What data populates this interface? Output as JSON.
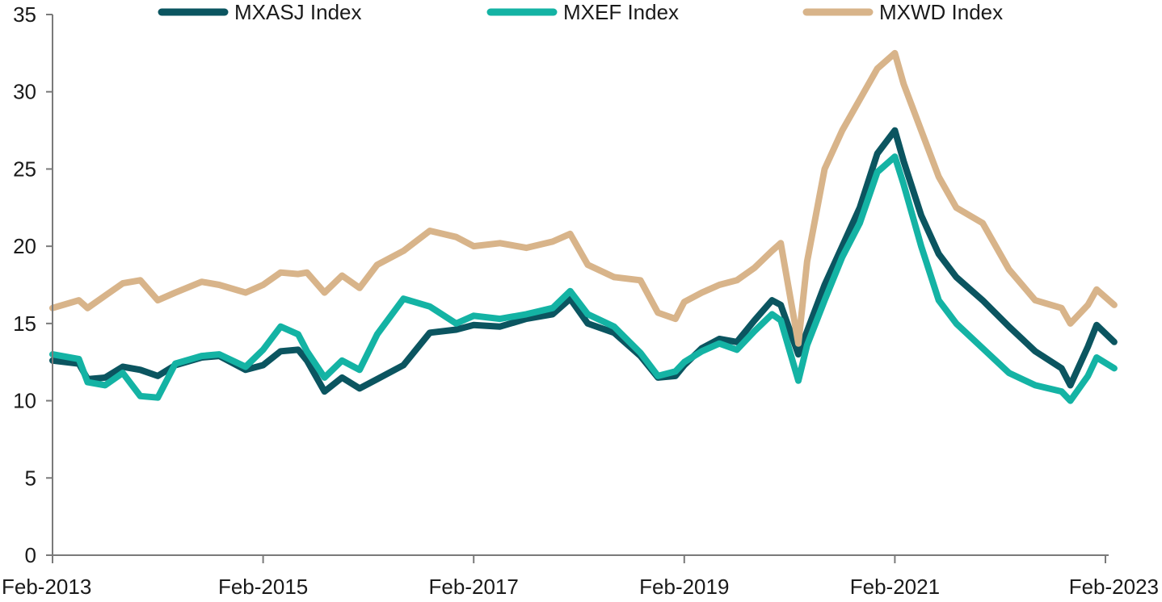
{
  "chart_data": {
    "type": "line",
    "title": "",
    "xlabel": "",
    "ylabel": "",
    "ylim": [
      0,
      35
    ],
    "xlim": [
      "2013-02",
      "2023-03"
    ],
    "yticks": [
      "0",
      "5",
      "10",
      "15",
      "20",
      "25",
      "30",
      "35"
    ],
    "xticks": [
      {
        "label": "Feb-2013",
        "date": "2013-02"
      },
      {
        "label": "Feb-2015",
        "date": "2015-02"
      },
      {
        "label": "Feb-2017",
        "date": "2017-02"
      },
      {
        "label": "Feb-2019",
        "date": "2019-02"
      },
      {
        "label": "Feb-2021",
        "date": "2021-02"
      },
      {
        "label": "Feb-2023",
        "date": "2023-02"
      }
    ],
    "grid": false,
    "legend": "top",
    "series": [
      {
        "name": "MXASJ Index",
        "color": "#0b5560",
        "points": [
          [
            "2013-02",
            12.6
          ],
          [
            "2013-05",
            12.4
          ],
          [
            "2013-06",
            11.4
          ],
          [
            "2013-08",
            11.5
          ],
          [
            "2013-10",
            12.2
          ],
          [
            "2013-12",
            12.0
          ],
          [
            "2014-02",
            11.6
          ],
          [
            "2014-04",
            12.3
          ],
          [
            "2014-07",
            12.8
          ],
          [
            "2014-09",
            12.9
          ],
          [
            "2014-12",
            12.0
          ],
          [
            "2015-02",
            12.3
          ],
          [
            "2015-04",
            13.2
          ],
          [
            "2015-06",
            13.3
          ],
          [
            "2015-07",
            12.6
          ],
          [
            "2015-09",
            10.6
          ],
          [
            "2015-11",
            11.5
          ],
          [
            "2016-01",
            10.8
          ],
          [
            "2016-03",
            11.4
          ],
          [
            "2016-06",
            12.3
          ],
          [
            "2016-09",
            14.4
          ],
          [
            "2016-12",
            14.6
          ],
          [
            "2017-02",
            14.9
          ],
          [
            "2017-05",
            14.8
          ],
          [
            "2017-08",
            15.3
          ],
          [
            "2017-11",
            15.6
          ],
          [
            "2018-01",
            16.6
          ],
          [
            "2018-03",
            15.0
          ],
          [
            "2018-06",
            14.4
          ],
          [
            "2018-09",
            12.9
          ],
          [
            "2018-11",
            11.5
          ],
          [
            "2019-01",
            11.6
          ],
          [
            "2019-02",
            12.3
          ],
          [
            "2019-04",
            13.4
          ],
          [
            "2019-06",
            14.0
          ],
          [
            "2019-08",
            13.8
          ],
          [
            "2019-10",
            15.2
          ],
          [
            "2019-12",
            16.5
          ],
          [
            "2020-01",
            16.2
          ],
          [
            "2020-03",
            13.0
          ],
          [
            "2020-04",
            14.5
          ],
          [
            "2020-06",
            17.5
          ],
          [
            "2020-08",
            20.0
          ],
          [
            "2020-10",
            22.5
          ],
          [
            "2020-12",
            26.0
          ],
          [
            "2021-02",
            27.5
          ],
          [
            "2021-03",
            25.5
          ],
          [
            "2021-05",
            22.0
          ],
          [
            "2021-07",
            19.5
          ],
          [
            "2021-09",
            18.0
          ],
          [
            "2021-12",
            16.5
          ],
          [
            "2022-03",
            14.8
          ],
          [
            "2022-06",
            13.2
          ],
          [
            "2022-09",
            12.1
          ],
          [
            "2022-10",
            11.0
          ],
          [
            "2022-12",
            13.5
          ],
          [
            "2023-01",
            14.9
          ],
          [
            "2023-03",
            13.8
          ]
        ]
      },
      {
        "name": "MXEF Index",
        "color": "#14b3a4",
        "points": [
          [
            "2013-02",
            13.0
          ],
          [
            "2013-05",
            12.7
          ],
          [
            "2013-06",
            11.2
          ],
          [
            "2013-08",
            11.0
          ],
          [
            "2013-10",
            11.8
          ],
          [
            "2013-12",
            10.3
          ],
          [
            "2014-02",
            10.2
          ],
          [
            "2014-04",
            12.4
          ],
          [
            "2014-07",
            12.9
          ],
          [
            "2014-09",
            13.0
          ],
          [
            "2014-12",
            12.2
          ],
          [
            "2015-02",
            13.3
          ],
          [
            "2015-04",
            14.8
          ],
          [
            "2015-06",
            14.3
          ],
          [
            "2015-07",
            13.2
          ],
          [
            "2015-09",
            11.5
          ],
          [
            "2015-11",
            12.6
          ],
          [
            "2016-01",
            12.0
          ],
          [
            "2016-03",
            14.3
          ],
          [
            "2016-06",
            16.6
          ],
          [
            "2016-09",
            16.1
          ],
          [
            "2016-12",
            15.0
          ],
          [
            "2017-02",
            15.5
          ],
          [
            "2017-05",
            15.3
          ],
          [
            "2017-08",
            15.6
          ],
          [
            "2017-11",
            16.0
          ],
          [
            "2018-01",
            17.1
          ],
          [
            "2018-03",
            15.6
          ],
          [
            "2018-06",
            14.8
          ],
          [
            "2018-09",
            13.1
          ],
          [
            "2018-11",
            11.6
          ],
          [
            "2019-01",
            11.9
          ],
          [
            "2019-02",
            12.5
          ],
          [
            "2019-04",
            13.2
          ],
          [
            "2019-06",
            13.7
          ],
          [
            "2019-08",
            13.3
          ],
          [
            "2019-10",
            14.5
          ],
          [
            "2019-12",
            15.6
          ],
          [
            "2020-01",
            15.2
          ],
          [
            "2020-03",
            11.3
          ],
          [
            "2020-04",
            13.6
          ],
          [
            "2020-06",
            16.5
          ],
          [
            "2020-08",
            19.3
          ],
          [
            "2020-10",
            21.5
          ],
          [
            "2020-12",
            24.8
          ],
          [
            "2021-02",
            25.8
          ],
          [
            "2021-03",
            24.0
          ],
          [
            "2021-05",
            20.0
          ],
          [
            "2021-07",
            16.5
          ],
          [
            "2021-09",
            15.0
          ],
          [
            "2021-12",
            13.4
          ],
          [
            "2022-03",
            11.8
          ],
          [
            "2022-06",
            11.0
          ],
          [
            "2022-09",
            10.6
          ],
          [
            "2022-10",
            10.0
          ],
          [
            "2022-12",
            11.6
          ],
          [
            "2023-01",
            12.8
          ],
          [
            "2023-03",
            12.1
          ]
        ]
      },
      {
        "name": "MXWD Index",
        "color": "#d8b48a",
        "points": [
          [
            "2013-02",
            16.0
          ],
          [
            "2013-05",
            16.5
          ],
          [
            "2013-06",
            16.0
          ],
          [
            "2013-08",
            16.8
          ],
          [
            "2013-10",
            17.6
          ],
          [
            "2013-12",
            17.8
          ],
          [
            "2014-02",
            16.5
          ],
          [
            "2014-04",
            17.0
          ],
          [
            "2014-07",
            17.7
          ],
          [
            "2014-09",
            17.5
          ],
          [
            "2014-12",
            17.0
          ],
          [
            "2015-02",
            17.5
          ],
          [
            "2015-04",
            18.3
          ],
          [
            "2015-06",
            18.2
          ],
          [
            "2015-07",
            18.3
          ],
          [
            "2015-09",
            17.0
          ],
          [
            "2015-11",
            18.1
          ],
          [
            "2016-01",
            17.3
          ],
          [
            "2016-03",
            18.8
          ],
          [
            "2016-06",
            19.7
          ],
          [
            "2016-09",
            21.0
          ],
          [
            "2016-12",
            20.6
          ],
          [
            "2017-02",
            20.0
          ],
          [
            "2017-05",
            20.2
          ],
          [
            "2017-08",
            19.9
          ],
          [
            "2017-11",
            20.3
          ],
          [
            "2018-01",
            20.8
          ],
          [
            "2018-03",
            18.8
          ],
          [
            "2018-06",
            18.0
          ],
          [
            "2018-09",
            17.8
          ],
          [
            "2018-11",
            15.7
          ],
          [
            "2019-01",
            15.3
          ],
          [
            "2019-02",
            16.4
          ],
          [
            "2019-04",
            17.0
          ],
          [
            "2019-06",
            17.5
          ],
          [
            "2019-08",
            17.8
          ],
          [
            "2019-10",
            18.6
          ],
          [
            "2019-12",
            19.7
          ],
          [
            "2020-01",
            20.2
          ],
          [
            "2020-03",
            13.7
          ],
          [
            "2020-04",
            19.0
          ],
          [
            "2020-06",
            25.0
          ],
          [
            "2020-08",
            27.5
          ],
          [
            "2020-10",
            29.5
          ],
          [
            "2020-12",
            31.5
          ],
          [
            "2021-02",
            32.5
          ],
          [
            "2021-03",
            30.5
          ],
          [
            "2021-05",
            27.5
          ],
          [
            "2021-07",
            24.5
          ],
          [
            "2021-09",
            22.5
          ],
          [
            "2021-12",
            21.5
          ],
          [
            "2022-03",
            18.5
          ],
          [
            "2022-06",
            16.5
          ],
          [
            "2022-09",
            16.0
          ],
          [
            "2022-10",
            15.0
          ],
          [
            "2022-12",
            16.2
          ],
          [
            "2023-01",
            17.2
          ],
          [
            "2023-03",
            16.2
          ]
        ]
      }
    ]
  }
}
